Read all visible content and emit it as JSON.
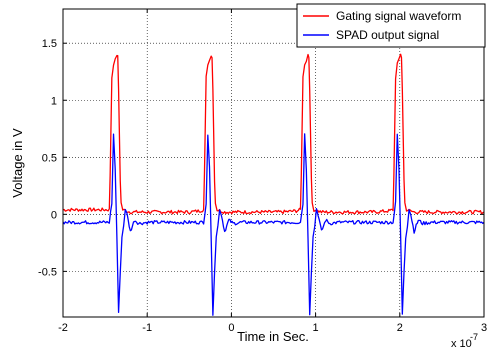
{
  "chart_data": {
    "type": "line",
    "title": "",
    "xlabel": "Time in Sec.",
    "ylabel": "Voltage in V",
    "x_exponent_label": "x 10",
    "x_exponent_power": "-7",
    "xlim": [
      -2,
      3
    ],
    "ylim": [
      -0.9,
      1.8
    ],
    "xticks": [
      -2,
      -1,
      0,
      1,
      2,
      3
    ],
    "xtick_labels": [
      "-2",
      "-1",
      "0",
      "1",
      "2",
      "3"
    ],
    "yticks": [
      -0.5,
      0,
      0.5,
      1,
      1.5
    ],
    "ytick_labels": [
      "-0.5",
      "0",
      "0.5",
      "1",
      "1.5"
    ],
    "grid": true,
    "legend_position": "top-right",
    "x_units_note": "x values in units of 1e-7 s",
    "series": [
      {
        "name": "Gating signal waveform",
        "color": "#ff0000",
        "x": [
          -2.0,
          -1.45,
          -1.44,
          -1.42,
          -1.4,
          -1.38,
          -1.36,
          -1.35,
          -1.34,
          -1.32,
          -1.31,
          -1.29,
          -1.2,
          -0.5,
          -0.38,
          -0.33,
          -0.32,
          -0.3,
          -0.28,
          -0.26,
          -0.24,
          -0.23,
          -0.22,
          -0.2,
          -0.19,
          -0.17,
          -0.08,
          0.6,
          0.77,
          0.82,
          0.83,
          0.85,
          0.87,
          0.89,
          0.91,
          0.92,
          0.93,
          0.95,
          0.96,
          0.98,
          1.07,
          1.7,
          1.87,
          1.92,
          1.93,
          1.95,
          1.97,
          1.99,
          2.01,
          2.02,
          2.03,
          2.05,
          2.06,
          2.08,
          2.17,
          3.0
        ],
        "y": [
          0.04,
          0.04,
          0.35,
          1.2,
          1.32,
          1.35,
          1.4,
          1.38,
          1.1,
          0.3,
          0.1,
          0.04,
          0.02,
          0.02,
          0.03,
          0.04,
          0.35,
          1.2,
          1.32,
          1.35,
          1.4,
          1.38,
          1.1,
          0.3,
          0.1,
          0.04,
          0.02,
          0.02,
          0.03,
          0.04,
          0.35,
          1.2,
          1.32,
          1.35,
          1.4,
          1.38,
          1.1,
          0.3,
          0.1,
          0.04,
          0.02,
          0.02,
          0.03,
          0.04,
          0.35,
          1.2,
          1.32,
          1.35,
          1.4,
          1.38,
          1.1,
          0.3,
          0.1,
          0.04,
          0.02,
          0.02
        ]
      },
      {
        "name": "SPAD output signal",
        "color": "#0000ff",
        "x": [
          -2.0,
          -1.45,
          -1.42,
          -1.4,
          -1.38,
          -1.36,
          -1.34,
          -1.32,
          -1.3,
          -1.28,
          -1.26,
          -1.24,
          -1.2,
          -1.15,
          -1.1,
          -1.0,
          -0.5,
          -0.33,
          -0.3,
          -0.28,
          -0.26,
          -0.24,
          -0.22,
          -0.2,
          -0.18,
          -0.16,
          -0.14,
          -0.12,
          -0.08,
          -0.03,
          0.02,
          0.12,
          0.6,
          0.82,
          0.85,
          0.87,
          0.89,
          0.91,
          0.93,
          0.95,
          0.97,
          0.99,
          1.01,
          1.03,
          1.07,
          1.12,
          1.17,
          1.27,
          1.7,
          1.92,
          1.95,
          1.97,
          1.99,
          2.01,
          2.03,
          2.05,
          2.07,
          2.09,
          2.11,
          2.13,
          2.17,
          2.22,
          2.27,
          2.37,
          3.0
        ],
        "y": [
          -0.07,
          -0.07,
          0.1,
          0.7,
          0.4,
          -0.2,
          -0.87,
          -0.5,
          -0.2,
          -0.1,
          0.05,
          0.0,
          -0.15,
          -0.05,
          -0.08,
          -0.07,
          -0.07,
          -0.07,
          0.1,
          0.7,
          0.4,
          -0.2,
          -0.87,
          -0.5,
          -0.2,
          -0.1,
          0.05,
          0.0,
          -0.15,
          -0.05,
          -0.08,
          -0.07,
          -0.07,
          -0.07,
          0.1,
          0.7,
          0.4,
          -0.2,
          -0.87,
          -0.5,
          -0.2,
          -0.1,
          0.05,
          0.0,
          -0.15,
          -0.05,
          -0.08,
          -0.07,
          -0.07,
          -0.07,
          0.1,
          0.7,
          0.4,
          -0.2,
          -0.87,
          -0.5,
          -0.2,
          -0.1,
          0.05,
          0.0,
          -0.15,
          -0.05,
          -0.08,
          -0.07,
          -0.07
        ]
      }
    ]
  }
}
